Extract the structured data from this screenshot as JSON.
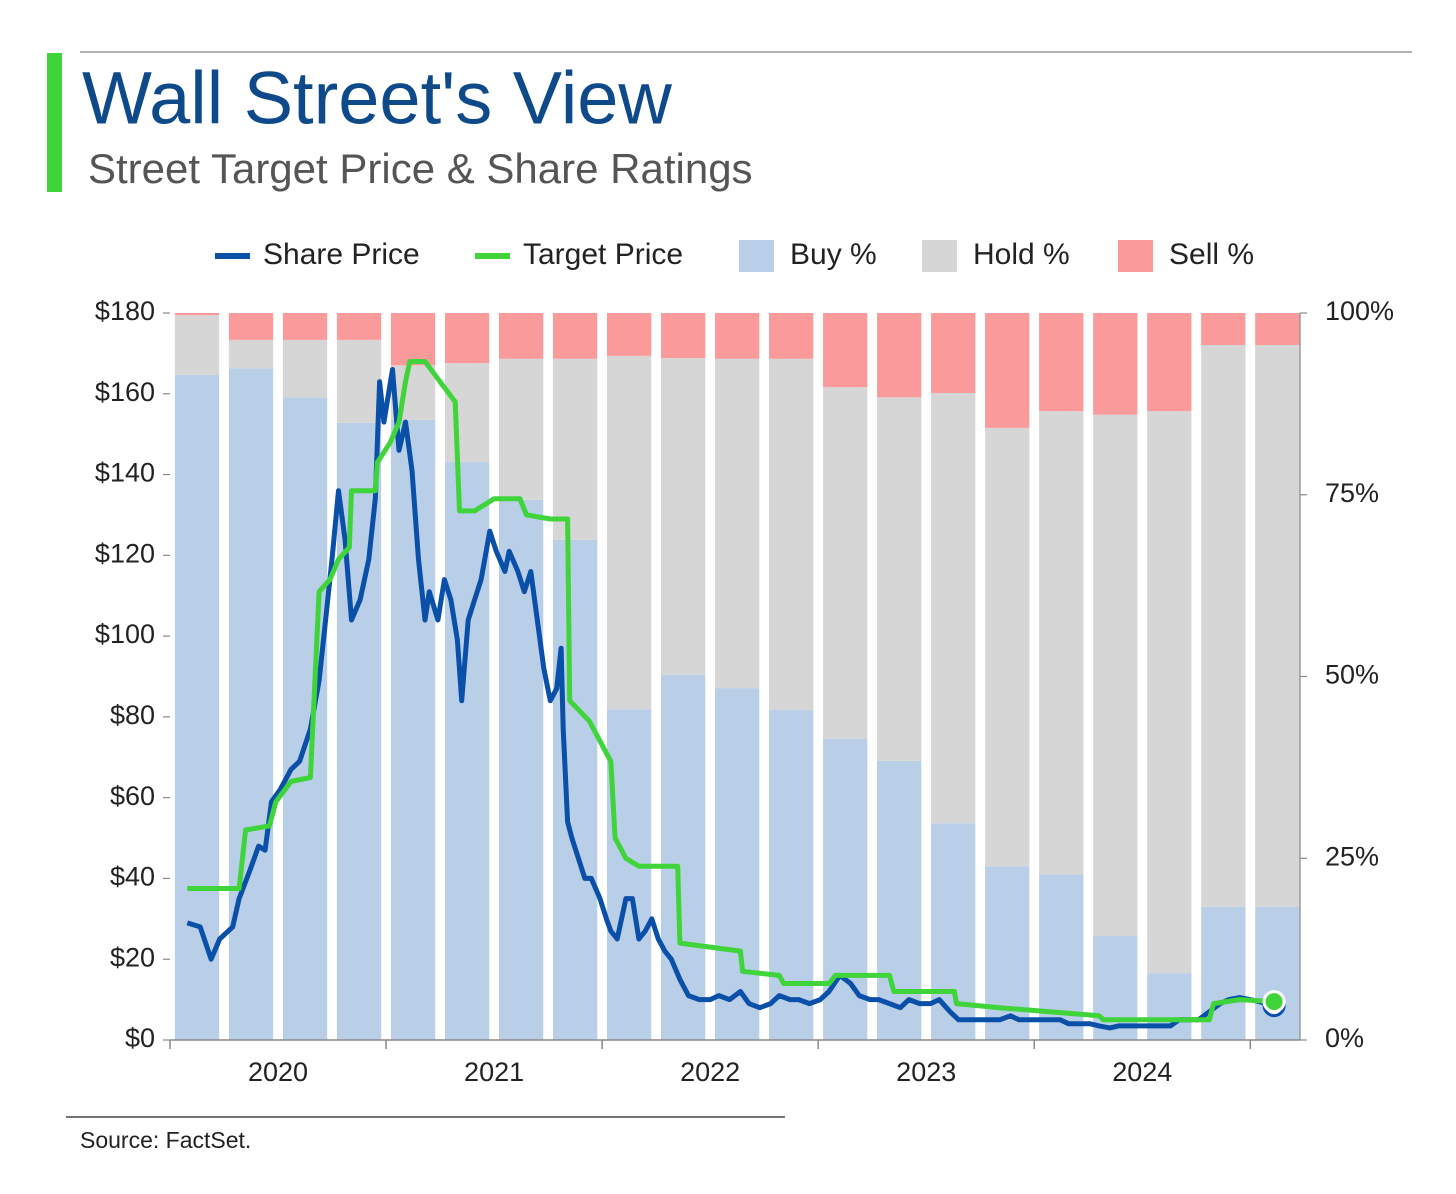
{
  "chart_data": {
    "type": "combo",
    "title": "Wall Street's View",
    "subtitle": "Street Target Price & Share Ratings",
    "source": "Source: FactSet.",
    "xlim": [
      2020,
      2025.23
    ],
    "xticks": [
      2020,
      2021,
      2022,
      2023,
      2024,
      2025
    ],
    "x_labels": [
      {
        "value": 2020.5,
        "label": "2020"
      },
      {
        "value": 2021.5,
        "label": "2021"
      },
      {
        "value": 2022.5,
        "label": "2022"
      },
      {
        "value": 2023.5,
        "label": "2023"
      },
      {
        "value": 2024.5,
        "label": "2024"
      }
    ],
    "ylim": [
      0,
      180
    ],
    "yticks": [
      {
        "value": 0,
        "label": "$0"
      },
      {
        "value": 20,
        "label": "$20"
      },
      {
        "value": 40,
        "label": "$40"
      },
      {
        "value": 60,
        "label": "$60"
      },
      {
        "value": 80,
        "label": "$80"
      },
      {
        "value": 100,
        "label": "$100"
      },
      {
        "value": 120,
        "label": "$120"
      },
      {
        "value": 140,
        "label": "$140"
      },
      {
        "value": 160,
        "label": "$160"
      },
      {
        "value": 180,
        "label": "$180"
      }
    ],
    "y2lim": [
      0,
      100
    ],
    "y2ticks": [
      {
        "value": 0,
        "label": "0%"
      },
      {
        "value": 25,
        "label": "25%"
      },
      {
        "value": 50,
        "label": "50%"
      },
      {
        "value": 75,
        "label": "75%"
      },
      {
        "value": 100,
        "label": "100%"
      }
    ],
    "bar_x": [
      2020.125,
      2020.375,
      2020.625,
      2020.875,
      2021.125,
      2021.375,
      2021.625,
      2021.875,
      2022.125,
      2022.375,
      2022.625,
      2022.875,
      2023.125,
      2023.375,
      2023.625,
      2023.875,
      2024.125,
      2024.375,
      2024.625,
      2024.875,
      2025.125
    ],
    "series": [
      {
        "name": "Share Price",
        "type": "line",
        "color": "#0a4fa8",
        "x": [
          2020.08,
          2020.14,
          2020.19,
          2020.23,
          2020.29,
          2020.32,
          2020.37,
          2020.41,
          2020.44,
          2020.47,
          2020.51,
          2020.56,
          2020.6,
          2020.65,
          2020.69,
          2020.72,
          2020.75,
          2020.78,
          2020.81,
          2020.84,
          2020.88,
          2020.92,
          2020.95,
          2020.97,
          2020.99,
          2021.03,
          2021.06,
          2021.09,
          2021.12,
          2021.15,
          2021.18,
          2021.2,
          2021.24,
          2021.27,
          2021.3,
          2021.33,
          2021.35,
          2021.38,
          2021.41,
          2021.44,
          2021.48,
          2021.51,
          2021.55,
          2021.57,
          2021.61,
          2021.64,
          2021.67,
          2021.7,
          2021.73,
          2021.76,
          2021.79,
          2021.81,
          2021.82,
          2021.84,
          2021.86,
          2021.89,
          2021.92,
          2021.95,
          2021.99,
          2022.02,
          2022.04,
          2022.07,
          2022.11,
          2022.14,
          2022.17,
          2022.2,
          2022.23,
          2022.26,
          2022.29,
          2022.32,
          2022.36,
          2022.4,
          2022.45,
          2022.5,
          2022.54,
          2022.59,
          2022.64,
          2022.68,
          2022.73,
          2022.78,
          2022.82,
          2022.87,
          2022.91,
          2022.96,
          2023.01,
          2023.05,
          2023.1,
          2023.15,
          2023.19,
          2023.24,
          2023.28,
          2023.33,
          2023.38,
          2023.42,
          2023.47,
          2023.52,
          2023.56,
          2023.61,
          2023.65,
          2023.7,
          2023.75,
          2023.79,
          2023.84,
          2023.89,
          2023.93,
          2023.98,
          2024.02,
          2024.07,
          2024.12,
          2024.16,
          2024.21,
          2024.26,
          2024.3,
          2024.35,
          2024.39,
          2024.44,
          2024.49,
          2024.53,
          2024.58,
          2024.63,
          2024.67,
          2024.72,
          2024.76,
          2024.81,
          2024.86,
          2024.9,
          2024.95,
          2025,
          2025.04,
          2025.11
        ],
        "values": [
          29,
          28,
          20,
          25,
          28,
          35,
          42,
          48,
          47,
          59,
          62,
          67,
          69,
          77,
          89,
          104,
          119,
          136,
          124,
          104,
          109,
          119,
          134,
          163,
          153,
          166,
          146,
          153,
          141,
          119,
          104,
          111,
          104,
          114,
          109,
          99,
          84,
          104,
          109,
          114,
          126,
          121,
          116,
          121,
          116,
          111,
          116,
          104,
          92,
          84,
          87,
          97,
          77,
          54,
          50,
          45,
          40,
          40,
          35,
          30,
          27,
          25,
          35,
          35,
          25,
          27,
          30,
          25,
          22,
          20,
          15,
          11,
          10,
          10,
          11,
          10,
          12,
          9,
          8,
          9,
          11,
          10,
          10,
          9,
          10,
          12,
          16,
          14,
          11,
          10,
          10,
          9,
          8,
          10,
          9,
          9,
          10,
          7,
          5,
          5,
          5,
          5,
          5,
          6,
          5,
          5,
          5,
          5,
          5,
          4,
          4,
          4,
          3.5,
          3,
          3.5,
          3.5,
          3.5,
          3.5,
          3.5,
          3.5,
          5,
          5,
          5,
          7,
          9,
          10,
          10.5,
          10,
          9.5,
          8.5
        ]
      },
      {
        "name": "Target Price",
        "type": "line",
        "color": "#3ed43a",
        "x": [
          2020.08,
          2020.32,
          2020.35,
          2020.46,
          2020.49,
          2020.56,
          2020.65,
          2020.69,
          2020.74,
          2020.78,
          2020.83,
          2020.84,
          2020.95,
          2020.96,
          2021.02,
          2021.06,
          2021.09,
          2021.11,
          2021.18,
          2021.25,
          2021.32,
          2021.34,
          2021.41,
          2021.5,
          2021.62,
          2021.65,
          2021.76,
          2021.84,
          2021.85,
          2021.94,
          2022.01,
          2022.04,
          2022.06,
          2022.11,
          2022.17,
          2022.35,
          2022.36,
          2022.64,
          2022.65,
          2022.82,
          2022.84,
          2023.05,
          2023.08,
          2023.33,
          2023.35,
          2023.63,
          2023.64,
          2023.84,
          2024.07,
          2024.3,
          2024.32,
          2024.81,
          2024.83,
          2024.95,
          2025.11
        ],
        "values": [
          37.5,
          37.5,
          52,
          53,
          59,
          64,
          65,
          111,
          114,
          119,
          122,
          136,
          136,
          143,
          148,
          153,
          163,
          168,
          168,
          163,
          158,
          131,
          131,
          134,
          134,
          130,
          129,
          129,
          84,
          79,
          72,
          69,
          50,
          45,
          43,
          43,
          24,
          22,
          17,
          16,
          14,
          14,
          16,
          16,
          12,
          12,
          9,
          8,
          7,
          6,
          5,
          5,
          9,
          10,
          9.5
        ]
      },
      {
        "name": "Buy %",
        "type": "bar",
        "axis": "y2",
        "color": "#b9cfe8",
        "values": [
          91.5,
          92.4,
          88.4,
          84.9,
          85.3,
          79.5,
          74.3,
          68.8,
          45.5,
          50.2,
          48.4,
          45.4,
          41.4,
          38.4,
          29.8,
          23.9,
          22.8,
          14.3,
          9.2,
          18.3,
          18.3
        ]
      },
      {
        "name": "Hold %",
        "type": "bar",
        "axis": "y2",
        "color": "#d6d6d6",
        "values": [
          8.2,
          3.9,
          7.9,
          11.4,
          7.5,
          13.6,
          19.4,
          24.9,
          48.6,
          43.6,
          45.3,
          48.3,
          48.4,
          50.0,
          59.2,
          60.3,
          63.7,
          71.7,
          77.3,
          77.3,
          77.3
        ]
      },
      {
        "name": "Sell %",
        "type": "bar",
        "axis": "y2",
        "color": "#fb9a9a",
        "values": [
          0.3,
          3.7,
          3.7,
          3.7,
          7.2,
          6.9,
          6.3,
          6.3,
          5.9,
          6.2,
          6.3,
          6.3,
          10.2,
          11.6,
          11.0,
          15.8,
          13.5,
          14.0,
          13.5,
          4.4,
          4.4
        ]
      }
    ]
  }
}
